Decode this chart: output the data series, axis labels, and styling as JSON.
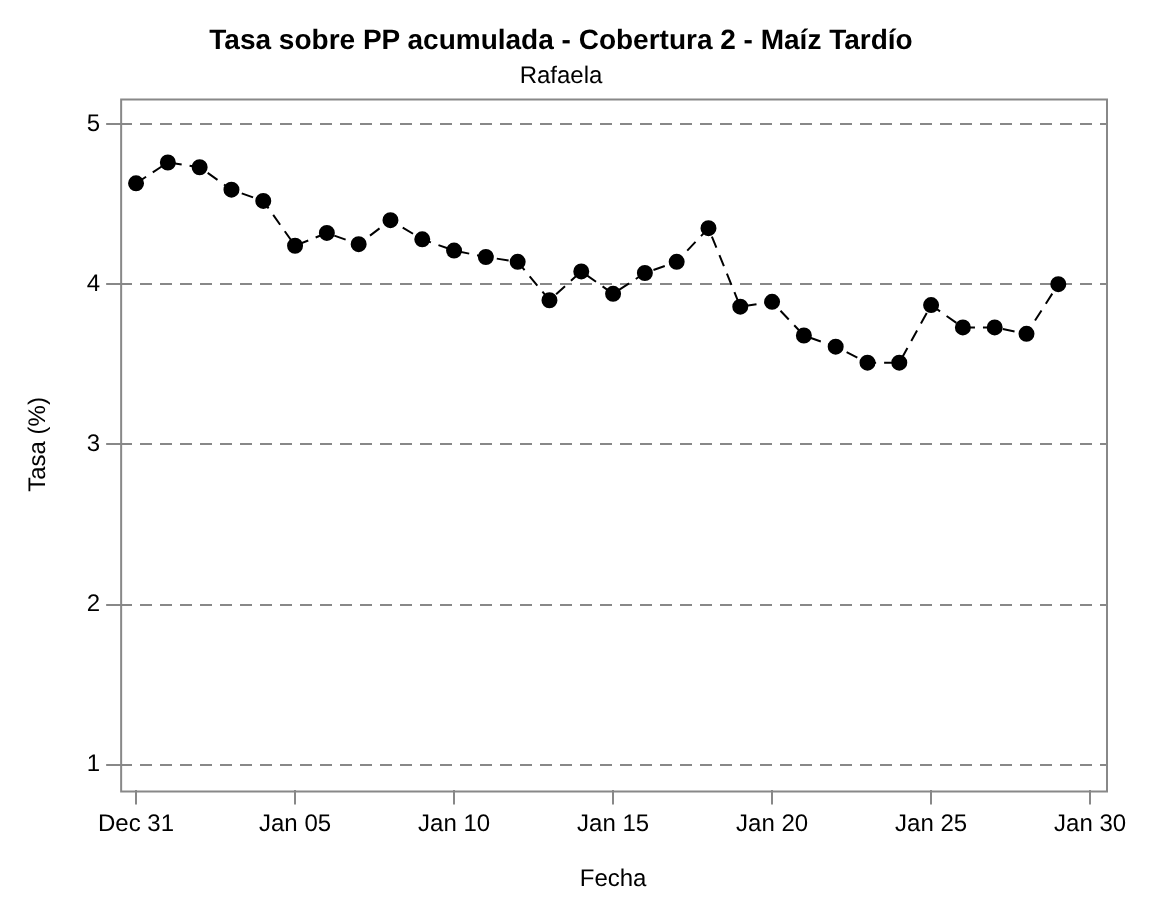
{
  "chart_data": {
    "type": "line",
    "title": "Tasa sobre PP acumulada - Cobertura 2 - Maíz Tardío",
    "subtitle": "Rafaela",
    "xlabel": "Fecha",
    "ylabel": "Tasa (%)",
    "categories": [
      "Dec 31",
      null,
      null,
      null,
      null,
      "Jan 05",
      null,
      null,
      null,
      null,
      "Jan 10",
      null,
      null,
      null,
      null,
      "Jan 15",
      null,
      null,
      null,
      null,
      "Jan 20",
      null,
      null,
      null,
      null,
      "Jan 25",
      null,
      null,
      null,
      null,
      "Jan 30"
    ],
    "series": [
      {
        "color": "#000000",
        "values": [
          4.63,
          4.76,
          4.73,
          4.59,
          4.52,
          4.24,
          4.32,
          4.25,
          4.4,
          4.28,
          4.21,
          4.17,
          4.14,
          3.9,
          4.08,
          3.94,
          4.07,
          4.14,
          4.35,
          3.86,
          3.89,
          3.68,
          3.61,
          3.51,
          3.51,
          3.87,
          3.73,
          3.73,
          3.69,
          4.0,
          null
        ]
      }
    ],
    "ylim": [
      0.84,
      5.16
    ],
    "yticks": [
      1,
      2,
      3,
      4,
      5
    ],
    "grid": "y",
    "legend": false,
    "marker": "circle",
    "line_style": "dashed"
  }
}
